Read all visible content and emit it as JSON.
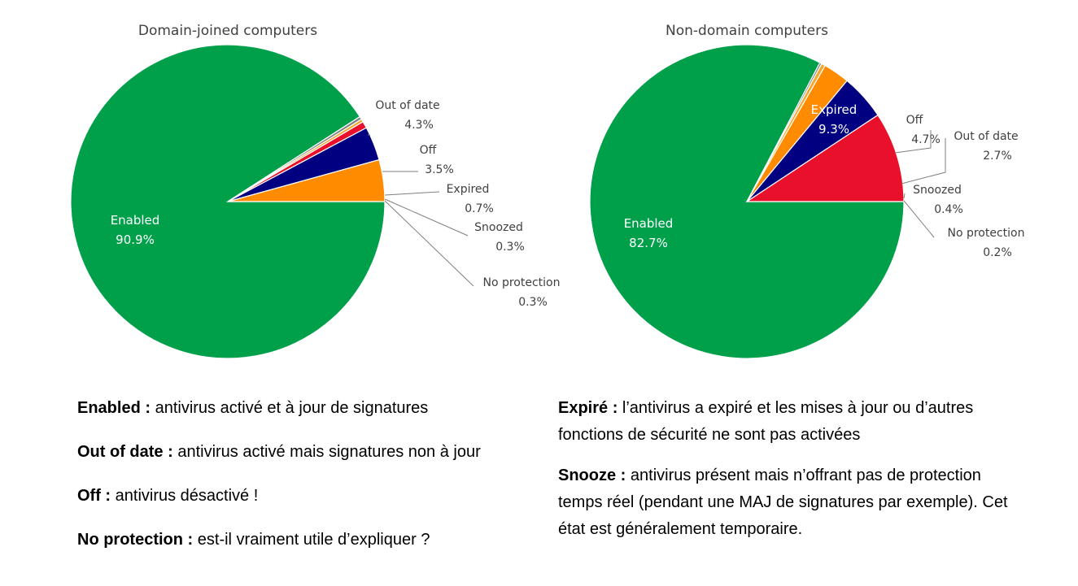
{
  "chart_data": [
    {
      "type": "pie",
      "title": "Domain-joined computers",
      "slices": [
        {
          "label": "Enabled",
          "value": 90.9,
          "display": "90.9%",
          "color": "#00a04b"
        },
        {
          "label": "Out of date",
          "value": 4.3,
          "display": "4.3%",
          "color": "#ff8c00"
        },
        {
          "label": "Off",
          "value": 3.5,
          "display": "3.5%",
          "color": "#000080"
        },
        {
          "label": "Expired",
          "value": 0.7,
          "display": "0.7%",
          "color": "#e8102a"
        },
        {
          "label": "Snoozed",
          "value": 0.3,
          "display": "0.3%",
          "color": "#f0a830"
        },
        {
          "label": "No protection",
          "value": 0.3,
          "display": "0.3%",
          "color": "#7f7f7f"
        }
      ]
    },
    {
      "type": "pie",
      "title": "Non-domain computers",
      "slices": [
        {
          "label": "Enabled",
          "value": 82.7,
          "display": "82.7%",
          "color": "#00a04b"
        },
        {
          "label": "Expired",
          "value": 9.3,
          "display": "9.3%",
          "color": "#e8102a"
        },
        {
          "label": "Off",
          "value": 4.7,
          "display": "4.7%",
          "color": "#000080"
        },
        {
          "label": "Out of date",
          "value": 2.7,
          "display": "2.7%",
          "color": "#ff8c00"
        },
        {
          "label": "Snoozed",
          "value": 0.4,
          "display": "0.4%",
          "color": "#f0a830"
        },
        {
          "label": "No protection",
          "value": 0.2,
          "display": "0.2%",
          "color": "#7f7f7f"
        }
      ]
    }
  ],
  "legend_left": [
    {
      "term": "Enabled :",
      "text": " antivirus activé et à jour de signatures"
    },
    {
      "term": "Out of date :",
      "text": " antivirus activé mais signatures non à jour"
    },
    {
      "term": "Off :",
      "text": " antivirus désactivé !"
    },
    {
      "term": "No protection :",
      "text": " est-il vraiment utile d’expliquer ?"
    }
  ],
  "legend_right": [
    {
      "term": "Expiré :",
      "text": " l’antivirus a expiré et les mises à jour ou d’autres fonctions de sécurité ne sont pas activées"
    },
    {
      "term": "Snooze :",
      "text": " antivirus présent mais n’offrant pas de protection temps réel (pendant une MAJ de signatures par exemple). Cet état est généralement temporaire."
    }
  ]
}
